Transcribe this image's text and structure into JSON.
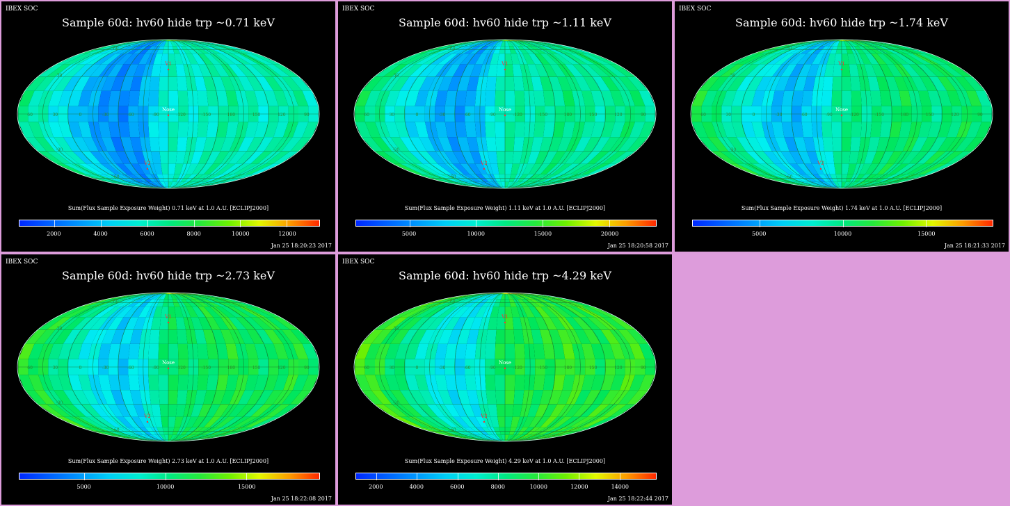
{
  "corner_label": "IBEX SOC",
  "panels": [
    {
      "title": "Sample 60d: hv60 hide trp ~0.71 keV",
      "subtitle": "Sum(Flux Sample Exposure Weight)  0.71 keV at 1.0 A.U. [ECLIPJ2000]",
      "timestamp": "Jan 25 18:20:23 2017",
      "colorbar": {
        "min": 500,
        "max": 13400,
        "ticks": [
          "2000",
          "4000",
          "6000",
          "8000",
          "10000",
          "12000"
        ]
      }
    },
    {
      "title": "Sample 60d: hv60 hide trp ~1.11 keV",
      "subtitle": "Sum(Flux Sample Exposure Weight)  1.11 keV at 1.0 A.U. [ECLIPJ2000]",
      "timestamp": "Jan 25 18:20:58 2017",
      "colorbar": {
        "min": 1000,
        "max": 23500,
        "ticks": [
          "5000",
          "10000",
          "15000",
          "20000"
        ]
      }
    },
    {
      "title": "Sample 60d: hv60 hide trp ~1.74 keV",
      "subtitle": "Sum(Flux Sample Exposure Weight)  1.74 keV at 1.0 A.U. [ECLIPJ2000]",
      "timestamp": "Jan 25 18:21:33 2017",
      "colorbar": {
        "min": 1000,
        "max": 19000,
        "ticks": [
          "5000",
          "10000",
          "15000"
        ]
      }
    },
    {
      "title": "Sample 60d: hv60 hide trp ~2.73 keV",
      "subtitle": "Sum(Flux Sample Exposure Weight)  2.73 keV at 1.0 A.U. [ECLIPJ2000]",
      "timestamp": "Jan 25 18:22:08 2017",
      "colorbar": {
        "min": 1000,
        "max": 19500,
        "ticks": [
          "5000",
          "10000",
          "15000"
        ]
      }
    },
    {
      "title": "Sample 60d: hv60 hide trp ~4.29 keV",
      "subtitle": "Sum(Flux Sample Exposure Weight)  4.29 keV at 1.0 A.U. [ECLIPJ2000]",
      "timestamp": "Jan 25 18:22:44 2017",
      "colorbar": {
        "min": 1000,
        "max": 15800,
        "ticks": [
          "2000",
          "4000",
          "6000",
          "8000",
          "10000",
          "12000",
          "14000"
        ]
      }
    }
  ],
  "map_labels": {
    "v1": "V1",
    "v2": "V2",
    "nose": "Nose",
    "tail": "Tail",
    "lon_ticks": [
      "60",
      "30",
      "0",
      "-30",
      "-60",
      "-90",
      "-120",
      "-150",
      "180",
      "150",
      "120",
      "90"
    ],
    "lat_ticks": [
      "60",
      "30",
      "-30",
      "-60"
    ]
  },
  "colors": {
    "background": "#dd9cdb",
    "panel_bg": "#000000",
    "marker": "#ff3030",
    "label": "#2a8a2a"
  }
}
